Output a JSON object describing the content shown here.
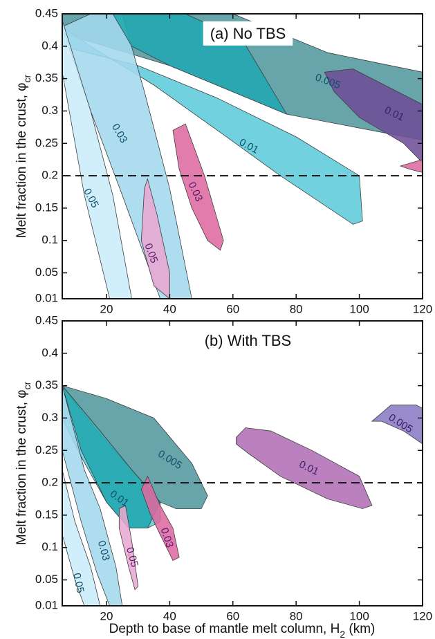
{
  "figure": {
    "xlabel": "Depth to base of mantle melt column, H",
    "xlabel_sub": "2",
    "xlabel_unit": " (km)",
    "ylabel": "Melt fraction in the crust, φ",
    "ylabel_sub": "cr"
  },
  "chart_data": [
    {
      "type": "area",
      "title": "(a) No TBS",
      "xlim": [
        6,
        120
      ],
      "ylim": [
        0.01,
        0.45
      ],
      "xticks": [
        "20",
        "40",
        "60",
        "80",
        "100",
        "120"
      ],
      "yticks": [
        "0.01",
        "0.05",
        "0.1",
        "0.15",
        "0.2",
        "0.25",
        "0.3",
        "0.35",
        "0.4",
        "0.45"
      ],
      "threshold": 0.2,
      "series": [
        {
          "name": "0.005",
          "color": "#52999e",
          "text_color": "#0f4e6c",
          "points": [
            [
              6,
              0.45
            ],
            [
              6,
              0.42
            ],
            [
              40,
              0.37
            ],
            [
              77,
              0.295
            ],
            [
              120,
              0.255
            ],
            [
              120,
              0.36
            ],
            [
              90,
              0.39
            ],
            [
              60,
              0.45
            ]
          ]
        },
        {
          "name": "0.01",
          "color": "#5ecbd9",
          "text_color": "#0f4e6c",
          "points": [
            [
              6,
              0.43
            ],
            [
              6,
              0.4
            ],
            [
              30,
              0.37
            ],
            [
              55,
              0.32
            ],
            [
              80,
              0.26
            ],
            [
              100,
              0.2
            ],
            [
              101,
              0.13
            ],
            [
              98,
              0.125
            ],
            [
              75,
              0.2
            ],
            [
              58,
              0.26
            ],
            [
              35,
              0.34
            ],
            [
              15,
              0.4
            ]
          ]
        },
        {
          "name": "0.03",
          "color": "#a4d8ee",
          "text_color": "#0f4e6c",
          "points": [
            [
              6,
              0.43
            ],
            [
              15,
              0.45
            ],
            [
              25,
              0.45
            ],
            [
              32,
              0.33
            ],
            [
              40,
              0.18
            ],
            [
              47,
              0.01
            ],
            [
              37,
              0.01
            ],
            [
              25,
              0.17
            ],
            [
              15,
              0.3
            ]
          ]
        },
        {
          "name": "0.05",
          "color": "#cbedfa",
          "text_color": "#0f4e6c",
          "points": [
            [
              6,
              0.44
            ],
            [
              15,
              0.3
            ],
            [
              22,
              0.17
            ],
            [
              28,
              0.01
            ],
            [
              21,
              0.01
            ],
            [
              13,
              0.17
            ],
            [
              6,
              0.36
            ]
          ]
        },
        {
          "name": "0.005",
          "color": "#22a7b1",
          "text_color": "#0f4e6c",
          "points": [
            [
              22,
              0.45
            ],
            [
              45,
              0.45
            ],
            [
              63,
              0.41
            ],
            [
              77,
              0.295
            ],
            [
              40,
              0.37
            ],
            [
              28,
              0.4
            ]
          ]
        },
        {
          "name": "0.01",
          "color": "#6e4f96",
          "text_color": "#3a1a66",
          "points": [
            [
              89,
              0.36
            ],
            [
              98,
              0.365
            ],
            [
              112,
              0.33
            ],
            [
              120,
              0.31
            ],
            [
              120,
              0.22
            ],
            [
              114,
              0.25
            ],
            [
              100,
              0.29
            ],
            [
              92,
              0.33
            ]
          ]
        },
        {
          "name": "0.03",
          "color": "#dd6aa0",
          "text_color": "#5a1a6e",
          "points": [
            [
              41,
              0.27
            ],
            [
              45,
              0.28
            ],
            [
              51,
              0.2
            ],
            [
              57,
              0.1
            ],
            [
              56,
              0.085
            ],
            [
              52,
              0.1
            ],
            [
              47,
              0.15
            ],
            [
              43,
              0.21
            ]
          ]
        },
        {
          "name": "0.05",
          "color": "#e8a8d0",
          "text_color": "#5a1a6e",
          "points": [
            [
              32,
              0.18
            ],
            [
              33,
              0.195
            ],
            [
              36,
              0.14
            ],
            [
              40,
              0.05
            ],
            [
              40,
              0.01
            ],
            [
              35,
              0.03
            ],
            [
              31,
              0.1
            ]
          ]
        },
        {
          "name": "",
          "color": "#dd6aa0",
          "text_color": "#5a1a6e",
          "points": [
            [
              113,
              0.215
            ],
            [
              120,
              0.225
            ],
            [
              120,
              0.205
            ],
            [
              116,
              0.21
            ]
          ]
        }
      ],
      "labels": [
        {
          "text": "0.005",
          "x": 90,
          "y": 0.345,
          "rot": 20,
          "series": 0
        },
        {
          "text": "0.01",
          "x": 65,
          "y": 0.245,
          "rot": 28,
          "series": 1
        },
        {
          "text": "0.03",
          "x": 24,
          "y": 0.265,
          "rot": 60,
          "series": 2
        },
        {
          "text": "0.05",
          "x": 15,
          "y": 0.165,
          "rot": 62,
          "series": 3
        },
        {
          "text": "0.01",
          "x": 111,
          "y": 0.295,
          "rot": 25,
          "series": 5
        },
        {
          "text": "0.03",
          "x": 48,
          "y": 0.175,
          "rot": 65,
          "series": 6
        },
        {
          "text": "0.05",
          "x": 34,
          "y": 0.08,
          "rot": 70,
          "series": 7
        }
      ]
    },
    {
      "type": "area",
      "title": "(b) With TBS",
      "xlim": [
        6,
        120
      ],
      "ylim": [
        0.01,
        0.45
      ],
      "xticks": [
        "20",
        "40",
        "60",
        "80",
        "100",
        "120"
      ],
      "yticks": [
        "0.01",
        "0.05",
        "0.1",
        "0.15",
        "0.2",
        "0.25",
        "0.3",
        "0.35",
        "0.4",
        "0.45"
      ],
      "threshold": 0.2,
      "series": [
        {
          "name": "0.005",
          "color": "#52999e",
          "text_color": "#0f4e6c",
          "points": [
            [
              6,
              0.35
            ],
            [
              20,
              0.33
            ],
            [
              35,
              0.3
            ],
            [
              47,
              0.23
            ],
            [
              52,
              0.18
            ],
            [
              50,
              0.16
            ],
            [
              42,
              0.16
            ],
            [
              37,
              0.17
            ],
            [
              28,
              0.22
            ],
            [
              18,
              0.28
            ]
          ]
        },
        {
          "name": "0.01",
          "color": "#5ecbd9",
          "text_color": "#0f4e6c",
          "points": [
            [
              6,
              0.35
            ],
            [
              17,
              0.28
            ],
            [
              28,
              0.22
            ],
            [
              37,
              0.17
            ],
            [
              37,
              0.14
            ],
            [
              33,
              0.13
            ],
            [
              27,
              0.13
            ],
            [
              20,
              0.17
            ],
            [
              12,
              0.24
            ],
            [
              6,
              0.3
            ]
          ]
        },
        {
          "name": "0.005",
          "color": "#22a7b1",
          "text_color": "#0f4e6c",
          "points": [
            [
              6,
              0.35
            ],
            [
              18,
              0.28
            ],
            [
              28,
              0.22
            ],
            [
              37,
              0.17
            ],
            [
              33,
              0.13
            ],
            [
              27,
              0.13
            ],
            [
              20,
              0.17
            ],
            [
              12,
              0.25
            ]
          ]
        },
        {
          "name": "0.03",
          "color": "#a4d8ee",
          "text_color": "#0f4e6c",
          "points": [
            [
              6,
              0.35
            ],
            [
              13,
              0.22
            ],
            [
              18,
              0.16
            ],
            [
              23,
              0.07
            ],
            [
              25,
              0.01
            ],
            [
              21,
              0.01
            ],
            [
              17,
              0.06
            ],
            [
              12,
              0.14
            ],
            [
              6,
              0.25
            ]
          ]
        },
        {
          "name": "0.05",
          "color": "#cbedfa",
          "text_color": "#0f4e6c",
          "points": [
            [
              6,
              0.22
            ],
            [
              10,
              0.14
            ],
            [
              15,
              0.07
            ],
            [
              18,
              0.01
            ],
            [
              13,
              0.01
            ],
            [
              10,
              0.05
            ],
            [
              6,
              0.12
            ]
          ]
        },
        {
          "name": "0.01",
          "color": "#b270b5",
          "text_color": "#3a1a66",
          "points": [
            [
              61,
              0.27
            ],
            [
              64,
              0.285
            ],
            [
              72,
              0.28
            ],
            [
              85,
              0.25
            ],
            [
              100,
              0.21
            ],
            [
              104,
              0.165
            ],
            [
              101,
              0.16
            ],
            [
              90,
              0.175
            ],
            [
              75,
              0.21
            ],
            [
              65,
              0.245
            ],
            [
              61,
              0.26
            ]
          ]
        },
        {
          "name": "0.005",
          "color": "#8a7bc4",
          "text_color": "#3a1a66",
          "points": [
            [
              104,
              0.295
            ],
            [
              110,
              0.32
            ],
            [
              118,
              0.32
            ],
            [
              120,
              0.315
            ],
            [
              120,
              0.26
            ],
            [
              114,
              0.28
            ],
            [
              107,
              0.295
            ]
          ]
        },
        {
          "name": "0.03",
          "color": "#dd6aa0",
          "text_color": "#5a1a6e",
          "points": [
            [
              33,
              0.21
            ],
            [
              37,
              0.165
            ],
            [
              41,
              0.13
            ],
            [
              43,
              0.085
            ],
            [
              41,
              0.08
            ],
            [
              38,
              0.11
            ],
            [
              34,
              0.15
            ],
            [
              31,
              0.19
            ]
          ]
        },
        {
          "name": "0.05",
          "color": "#e8a8d0",
          "text_color": "#5a1a6e",
          "points": [
            [
              24,
              0.16
            ],
            [
              26,
              0.165
            ],
            [
              28,
              0.11
            ],
            [
              30,
              0.04
            ],
            [
              29,
              0.035
            ],
            [
              27,
              0.07
            ],
            [
              24,
              0.13
            ]
          ]
        }
      ],
      "labels": [
        {
          "text": "0.005",
          "x": 40,
          "y": 0.235,
          "rot": 32,
          "series": 0
        },
        {
          "text": "0.01",
          "x": 24,
          "y": 0.175,
          "rot": 35,
          "series": 1
        },
        {
          "text": "0.03",
          "x": 19,
          "y": 0.095,
          "rot": 75,
          "series": 3
        },
        {
          "text": "0.05",
          "x": 11,
          "y": 0.045,
          "rot": 78,
          "series": 4
        },
        {
          "text": "0.01",
          "x": 84,
          "y": 0.222,
          "rot": 25,
          "series": 5
        },
        {
          "text": "0.005",
          "x": 113,
          "y": 0.291,
          "rot": 32,
          "series": 6
        },
        {
          "text": "0.03",
          "x": 39,
          "y": 0.115,
          "rot": 72,
          "series": 7
        },
        {
          "text": "0.05",
          "x": 28,
          "y": 0.085,
          "rot": 75,
          "series": 8
        }
      ]
    }
  ]
}
